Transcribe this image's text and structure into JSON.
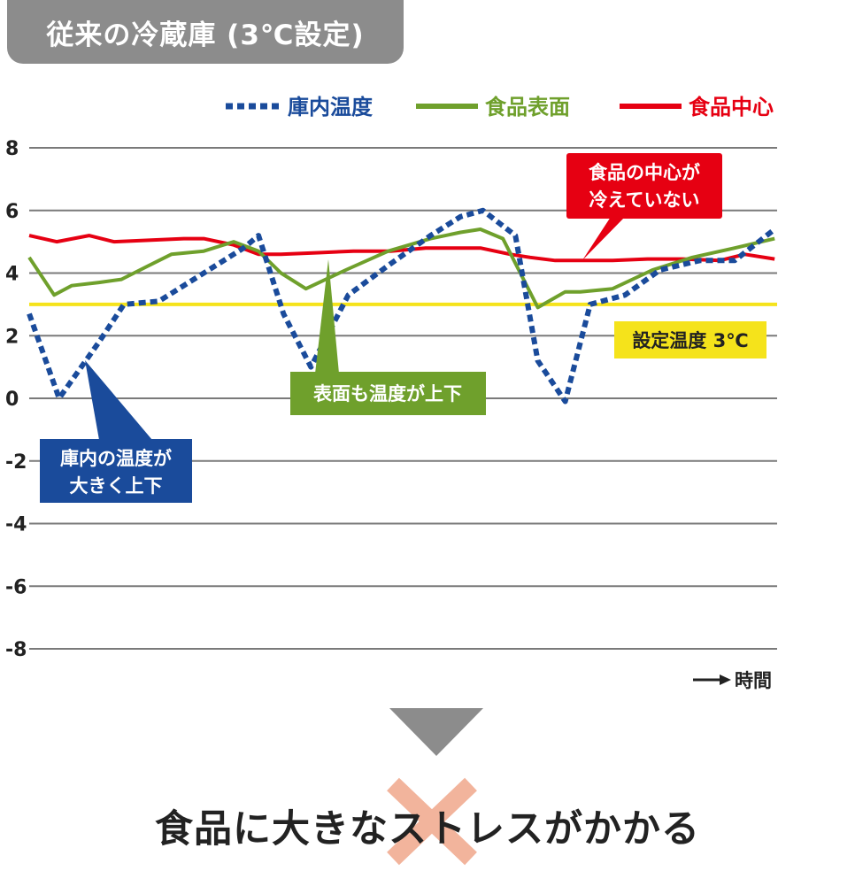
{
  "header": {
    "title": "従来の冷蔵庫 (3℃設定)"
  },
  "conclusion": "食品に大きなストレスがかかる",
  "colors": {
    "inside": "#1a4b9b",
    "surface": "#6fa02c",
    "center": "#e60012",
    "setpoint": "#f5e31b",
    "grid": "#7a7a7a",
    "gray": "#8c8c8c",
    "cross": "#f2b49c"
  },
  "annotations": {
    "center": [
      "食品の中心が",
      "冷えていない"
    ],
    "setpoint": "設定温度 3℃",
    "surface": "表面も温度が上下",
    "inside": [
      "庫内の温度が",
      "大きく上下"
    ]
  },
  "chart_data": {
    "type": "line",
    "title": "従来の冷蔵庫 (3℃設定)",
    "xlabel": "時間",
    "ylabel": "",
    "ylim": [
      -8,
      8
    ],
    "yticks": [
      "8",
      "6",
      "4",
      "2",
      "0",
      "-2",
      "-4",
      "-6",
      "-8"
    ],
    "grid": true,
    "legend": "top",
    "reference_line": {
      "label": "設定温度 3℃",
      "y": 3
    },
    "series": [
      {
        "name": "庫内温度",
        "style": "dotted",
        "x": [
          0,
          1.2,
          2.8,
          3.8,
          5.2,
          7.0,
          8.6,
          9.2,
          10.2,
          11.3,
          12.8,
          14.5,
          16.1,
          17.3,
          18.2,
          19.5,
          20.4,
          21.5,
          22.5,
          23.9,
          25.3,
          26.9,
          28.3,
          29.9
        ],
        "y": [
          2.7,
          0.0,
          1.8,
          3.0,
          3.1,
          4.0,
          4.8,
          5.2,
          2.7,
          1.0,
          3.3,
          4.3,
          5.2,
          5.8,
          6.0,
          5.2,
          1.2,
          -0.1,
          3.0,
          3.3,
          4.1,
          4.4,
          4.4,
          5.4
        ]
      },
      {
        "name": "食品表面",
        "style": "solid",
        "x": [
          0,
          1.0,
          1.7,
          2.8,
          3.7,
          4.7,
          5.7,
          7.0,
          8.2,
          9.2,
          10.1,
          11.1,
          12.7,
          14.4,
          16.1,
          17.3,
          18.1,
          19.0,
          20.4,
          21.5,
          22.1,
          23.4,
          25.0,
          26.6,
          28.3,
          29.9
        ],
        "y": [
          4.5,
          3.3,
          3.6,
          3.7,
          3.8,
          4.2,
          4.6,
          4.7,
          5.0,
          4.7,
          4.0,
          3.5,
          4.1,
          4.7,
          5.1,
          5.3,
          5.4,
          5.1,
          2.9,
          3.4,
          3.4,
          3.5,
          4.1,
          4.5,
          4.8,
          5.1
        ]
      },
      {
        "name": "食品中心",
        "style": "solid",
        "x": [
          0,
          1.1,
          2.4,
          3.4,
          4.8,
          6.2,
          7.0,
          8.2,
          9.2,
          10.1,
          11.6,
          13.0,
          14.5,
          15.9,
          17.3,
          18.1,
          19.3,
          20.1,
          21.1,
          22.2,
          23.4,
          24.8,
          26.2,
          27.7,
          28.7,
          29.9
        ],
        "y": [
          5.2,
          5.0,
          5.2,
          5.0,
          5.05,
          5.1,
          5.1,
          4.9,
          4.6,
          4.6,
          4.65,
          4.7,
          4.7,
          4.8,
          4.8,
          4.8,
          4.6,
          4.5,
          4.4,
          4.4,
          4.4,
          4.45,
          4.45,
          4.4,
          4.6,
          4.45
        ]
      }
    ]
  }
}
